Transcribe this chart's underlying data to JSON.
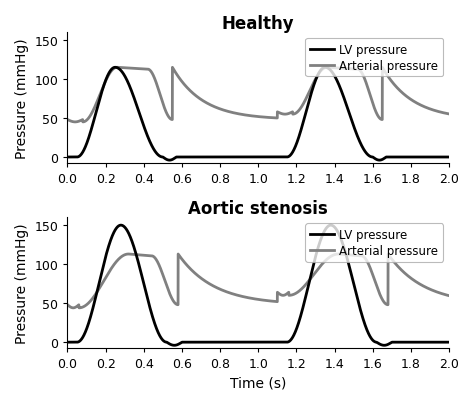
{
  "title_top": "Healthy",
  "title_bottom": "Aortic stenosis",
  "xlabel": "Time (s)",
  "ylabel": "Pressure (mmHg)",
  "xlim": [
    0,
    2
  ],
  "ylim": [
    -8,
    160
  ],
  "yticks": [
    0,
    50,
    100,
    150
  ],
  "xticks": [
    0,
    0.2,
    0.4,
    0.6,
    0.8,
    1.0,
    1.2,
    1.4,
    1.6,
    1.8,
    2.0
  ],
  "lv_color": "#000000",
  "arterial_color": "#808080",
  "lv_linewidth": 2.0,
  "arterial_linewidth": 2.0,
  "legend_lv": "LV pressure",
  "legend_arterial": "Arterial pressure",
  "background_color": "#ffffff",
  "title_fontsize": 12,
  "label_fontsize": 10,
  "tick_fontsize": 9
}
